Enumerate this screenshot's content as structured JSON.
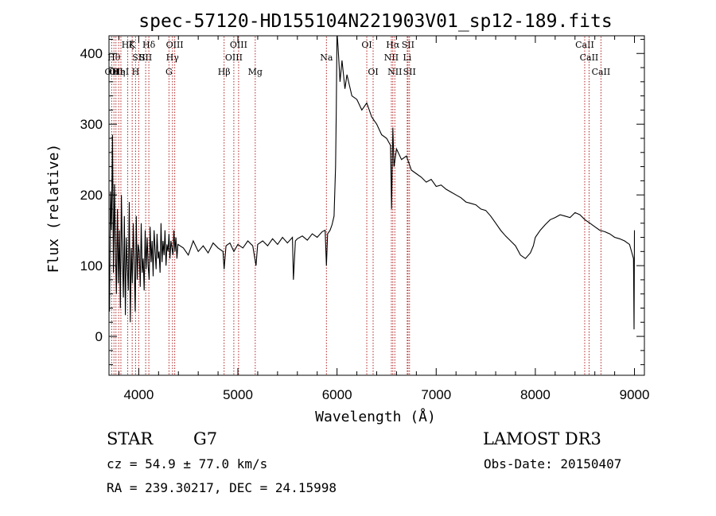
{
  "chart_data": {
    "type": "line",
    "title": "spec-57120-HD155104N221903V01_sp12-189.fits",
    "xlabel": "Wavelength (Å)",
    "ylabel": "Flux (relative)",
    "xlim": [
      3700,
      9100
    ],
    "ylim": [
      -55,
      425
    ],
    "x_ticks": [
      4000,
      5000,
      6000,
      7000,
      8000,
      9000
    ],
    "x_tick_labels": [
      "4000",
      "5000",
      "6000",
      "7000",
      "8000",
      "9000"
    ],
    "y_ticks": [
      0,
      100,
      200,
      300,
      400
    ],
    "y_tick_labels": [
      "0",
      "100",
      "200",
      "300",
      "400"
    ],
    "grid": false,
    "legend": "none",
    "line_color": "#000000",
    "marker_color": "#b22222",
    "series": [
      {
        "name": "",
        "x": [
          3705,
          3715,
          3725,
          3735,
          3745,
          3755,
          3765,
          3775,
          3785,
          3795,
          3805,
          3815,
          3825,
          3835,
          3845,
          3855,
          3865,
          3875,
          3885,
          3895,
          3905,
          3915,
          3925,
          3935,
          3945,
          3955,
          3965,
          3975,
          3985,
          3995,
          4005,
          4015,
          4025,
          4035,
          4045,
          4055,
          4065,
          4075,
          4085,
          4095,
          4105,
          4115,
          4125,
          4135,
          4145,
          4155,
          4165,
          4175,
          4185,
          4195,
          4205,
          4215,
          4225,
          4235,
          4245,
          4255,
          4265,
          4275,
          4285,
          4295,
          4305,
          4315,
          4325,
          4335,
          4345,
          4355,
          4365,
          4375,
          4385,
          4395,
          4450,
          4500,
          4550,
          4600,
          4650,
          4700,
          4750,
          4800,
          4850,
          4861,
          4880,
          4920,
          4960,
          5000,
          5050,
          5100,
          5150,
          5183,
          5200,
          5250,
          5300,
          5350,
          5400,
          5450,
          5500,
          5550,
          5560,
          5580,
          5600,
          5650,
          5700,
          5750,
          5800,
          5850,
          5880,
          5893,
          5905,
          5930,
          5950,
          5970,
          5985,
          5992,
          6000,
          6010,
          6030,
          6050,
          6080,
          6100,
          6150,
          6200,
          6250,
          6300,
          6350,
          6400,
          6450,
          6500,
          6540,
          6550,
          6563,
          6575,
          6600,
          6650,
          6700,
          6750,
          6800,
          6850,
          6900,
          6950,
          7000,
          7050,
          7100,
          7150,
          7200,
          7250,
          7300,
          7350,
          7400,
          7450,
          7500,
          7550,
          7600,
          7650,
          7700,
          7750,
          7800,
          7850,
          7900,
          7950,
          7980,
          8000,
          8050,
          8100,
          8150,
          8200,
          8250,
          8300,
          8350,
          8400,
          8450,
          8500,
          8550,
          8600,
          8650,
          8700,
          8750,
          8800,
          8850,
          8900,
          8950,
          8990,
          8996,
          9000
        ],
        "values": [
          35,
          205,
          150,
          285,
          90,
          215,
          120,
          60,
          180,
          75,
          150,
          40,
          200,
          115,
          55,
          170,
          30,
          140,
          95,
          65,
          190,
          20,
          125,
          75,
          160,
          100,
          35,
          170,
          80,
          130,
          120,
          70,
          160,
          90,
          110,
          65,
          150,
          95,
          140,
          100,
          80,
          155,
          105,
          135,
          85,
          150,
          120,
          95,
          145,
          110,
          120,
          90,
          160,
          105,
          135,
          115,
          150,
          100,
          130,
          120,
          145,
          110,
          135,
          125,
          115,
          150,
          120,
          140,
          110,
          130,
          125,
          115,
          135,
          120,
          128,
          118,
          132,
          125,
          120,
          95,
          128,
          132,
          120,
          130,
          125,
          135,
          128,
          100,
          130,
          135,
          128,
          138,
          130,
          140,
          132,
          140,
          80,
          135,
          138,
          142,
          136,
          145,
          140,
          148,
          150,
          100,
          145,
          150,
          158,
          170,
          240,
          320,
          430,
          410,
          360,
          390,
          350,
          370,
          340,
          335,
          320,
          330,
          310,
          300,
          285,
          280,
          270,
          180,
          295,
          240,
          265,
          250,
          255,
          235,
          230,
          225,
          218,
          222,
          212,
          214,
          208,
          204,
          200,
          196,
          190,
          188,
          186,
          180,
          178,
          170,
          160,
          150,
          142,
          135,
          128,
          115,
          110,
          118,
          128,
          140,
          150,
          158,
          165,
          168,
          172,
          170,
          168,
          175,
          172,
          165,
          160,
          155,
          150,
          148,
          145,
          140,
          138,
          135,
          130,
          110,
          10,
          150
        ]
      }
    ],
    "line_markers": [
      {
        "wavelength": 3727,
        "label": "OII",
        "row": 2
      },
      {
        "wavelength": 3750,
        "label": "Hθ",
        "row": 1
      },
      {
        "wavelength": 3770,
        "label": "OII",
        "row": 3
      },
      {
        "wavelength": 3798,
        "label": "Hη",
        "row": 3
      },
      {
        "wavelength": 3820,
        "label": "HeI",
        "row": 2
      },
      {
        "wavelength": 3889,
        "label": "Hζ",
        "row": 0
      },
      {
        "wavelength": 3934,
        "label": "K",
        "row": 0
      },
      {
        "wavelength": 3968,
        "label": "H",
        "row": 2
      },
      {
        "wavelength": 4000,
        "label": "SII",
        "row": 1
      },
      {
        "wavelength": 4070,
        "label": "SII",
        "row": 1
      },
      {
        "wavelength": 4102,
        "label": "Hδ",
        "row": 0
      },
      {
        "wavelength": 4305,
        "label": "G",
        "row": 2
      },
      {
        "wavelength": 4340,
        "label": "Hγ",
        "row": 1
      },
      {
        "wavelength": 4363,
        "label": "OIII",
        "row": 0
      },
      {
        "wavelength": 4861,
        "label": "Hβ",
        "row": 2
      },
      {
        "wavelength": 4959,
        "label": "OIII",
        "row": 1
      },
      {
        "wavelength": 5007,
        "label": "OIII",
        "row": 0
      },
      {
        "wavelength": 5175,
        "label": "Mg",
        "row": 2
      },
      {
        "wavelength": 5893,
        "label": "Na",
        "row": 1
      },
      {
        "wavelength": 6300,
        "label": "OI",
        "row": 0
      },
      {
        "wavelength": 6364,
        "label": "OI",
        "row": 2
      },
      {
        "wavelength": 6548,
        "label": "NII",
        "row": 1
      },
      {
        "wavelength": 6563,
        "label": "Hα",
        "row": 0
      },
      {
        "wavelength": 6583,
        "label": "NII",
        "row": 2
      },
      {
        "wavelength": 6708,
        "label": "Li",
        "row": 1
      },
      {
        "wavelength": 6716,
        "label": "SII",
        "row": 0
      },
      {
        "wavelength": 6731,
        "label": "SII",
        "row": 2
      },
      {
        "wavelength": 8498,
        "label": "CaII",
        "row": 0
      },
      {
        "wavelength": 8542,
        "label": "CaII",
        "row": 1
      },
      {
        "wavelength": 8662,
        "label": "CaII",
        "row": 2
      }
    ]
  },
  "info": {
    "class_text": "STAR",
    "subclass_text": "G7",
    "survey": "LAMOST DR3",
    "cz": "cz = 54.9 ± 77.0 km/s",
    "obs_date": "Obs-Date: 20150407",
    "radec": "RA = 239.30217, DEC =  24.15998"
  }
}
